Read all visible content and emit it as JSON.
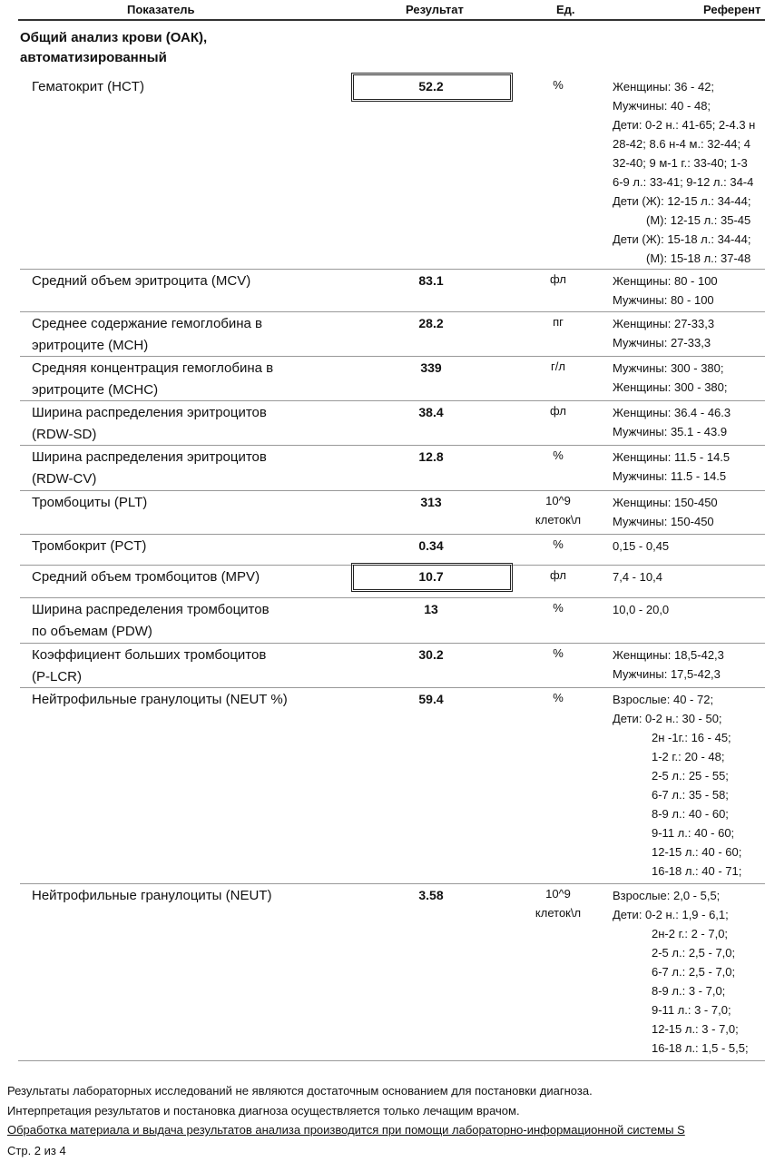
{
  "header": {
    "columns": [
      "Показатель",
      "Результат",
      "Ед.",
      "Референт"
    ]
  },
  "section": {
    "title_lines": [
      "Общий анализ крови (ОАК),",
      "автоматизированный"
    ]
  },
  "table": {
    "rows": [
      {
        "name": [
          "Гематокрит (HCT)"
        ],
        "result": "52.2",
        "flagged": true,
        "unit": [
          "%"
        ],
        "reference": [
          "Женщины: 36 - 42;",
          "Мужчины: 40 - 48;",
          "Дети: 0-2 н.: 41-65; 2-4.3 н",
          "28-42; 8.6 н-4 м.: 32-44; 4",
          "32-40; 9 м-1 г.: 33-40; 1-3",
          "6-9 л.: 33-41; 9-12 л.: 34-4",
          "Дети (Ж): 12-15 л.: 34-44;",
          "(М): 12-15 л.: 35-45",
          "Дети (Ж): 15-18 л.: 34-44;",
          "(М): 15-18 л.: 37-48"
        ]
      },
      {
        "name": [
          "Средний объем эритроцита (MCV)"
        ],
        "result": "83.1",
        "flagged": false,
        "unit": [
          "фл"
        ],
        "reference": [
          "Женщины: 80 - 100",
          "Мужчины: 80 - 100"
        ]
      },
      {
        "name": [
          "Среднее содержание гемоглобина в",
          "эритроците (MCH)"
        ],
        "result": "28.2",
        "flagged": false,
        "unit": [
          "пг"
        ],
        "reference": [
          "Женщины: 27-33,3",
          "Мужчины: 27-33,3"
        ]
      },
      {
        "name": [
          "Средняя концентрация гемоглобина в",
          "эритроците (MCHC)"
        ],
        "result": "339",
        "flagged": false,
        "unit": [
          "г/л"
        ],
        "reference": [
          "Мужчины: 300 - 380;",
          "Женщины: 300 - 380;"
        ]
      },
      {
        "name": [
          "Ширина распределения эритроцитов",
          "(RDW-SD)"
        ],
        "result": "38.4",
        "flagged": false,
        "unit": [
          "фл"
        ],
        "reference": [
          "Женщины: 36.4 - 46.3",
          "Мужчины: 35.1 - 43.9"
        ]
      },
      {
        "name": [
          "Ширина распределения эритроцитов",
          "(RDW-CV)"
        ],
        "result": "12.8",
        "flagged": false,
        "unit": [
          "%"
        ],
        "reference": [
          "Женщины: 11.5 - 14.5",
          "Мужчины: 11.5 - 14.5"
        ]
      },
      {
        "name": [
          "Тромбоциты (PLT)"
        ],
        "result": "313",
        "flagged": false,
        "unit": [
          "10^9",
          "клеток\\л"
        ],
        "reference": [
          "Женщины: 150-450",
          "Мужчины: 150-450"
        ]
      },
      {
        "name": [
          "Тромбокрит (PCT)"
        ],
        "result": "0.34",
        "flagged": false,
        "unit": [
          "%"
        ],
        "reference": [
          "0,15 - 0,45"
        ]
      },
      {
        "name": [
          "Средний объем тромбоцитов (MPV)"
        ],
        "result": "10.7",
        "flagged": true,
        "unit": [
          "фл"
        ],
        "reference": [
          "7,4 - 10,4"
        ]
      },
      {
        "name": [
          "Ширина распределения тромбоцитов",
          "по объемам (PDW)"
        ],
        "result": "13",
        "flagged": false,
        "unit": [
          "%"
        ],
        "reference": [
          "10,0 - 20,0"
        ]
      },
      {
        "name": [
          "Коэффициент больших тромбоцитов",
          "(P-LCR)"
        ],
        "result": "30.2",
        "flagged": false,
        "unit": [
          "%"
        ],
        "reference": [
          "Женщины: 18,5-42,3",
          "Мужчины: 17,5-42,3"
        ]
      },
      {
        "name": [
          "Нейтрофильные гранулоциты (NEUT %)"
        ],
        "result": "59.4",
        "flagged": false,
        "unit": [
          "%"
        ],
        "reference": [
          "Взрослые: 40 - 72;",
          "Дети: 0-2 н.: 30 - 50;",
          "2н -1г.: 16 - 45;",
          "1-2 г.: 20 - 48;",
          "2-5 л.: 25 - 55;",
          "6-7 л.: 35 - 58;",
          "8-9 л.: 40 - 60;",
          "9-11 л.: 40 - 60;",
          "12-15 л.: 40 - 60;",
          "16-18 л.: 40 - 71;"
        ]
      },
      {
        "name": [
          "Нейтрофильные гранулоциты (NEUT)"
        ],
        "result": "3.58",
        "flagged": false,
        "unit": [
          "10^9",
          "клеток\\л"
        ],
        "reference": [
          "Взрослые: 2,0 - 5,5;",
          "Дети: 0-2 н.: 1,9 - 6,1;",
          "2н-2 г.: 2 - 7,0;",
          "2-5 л.: 2,5 - 7,0;",
          "6-7 л.: 2,5 - 7,0;",
          "8-9 л.: 3 - 7,0;",
          "9-11 л.: 3 - 7,0;",
          "12-15 л.: 3 - 7,0;",
          "16-18 л.: 1,5 - 5,5;"
        ]
      }
    ]
  },
  "footer": {
    "notes": [
      "Результаты лабораторных исследований не являются достаточным основанием для постановки диагноза.",
      "Интерпретация результатов и постановка диагноза осуществляется только лечащим врачом.",
      "Обработка материала и выдача результатов анализа производится при помощи лабораторно-информационной системы S"
    ],
    "page": "Стр. 2 из 4"
  }
}
